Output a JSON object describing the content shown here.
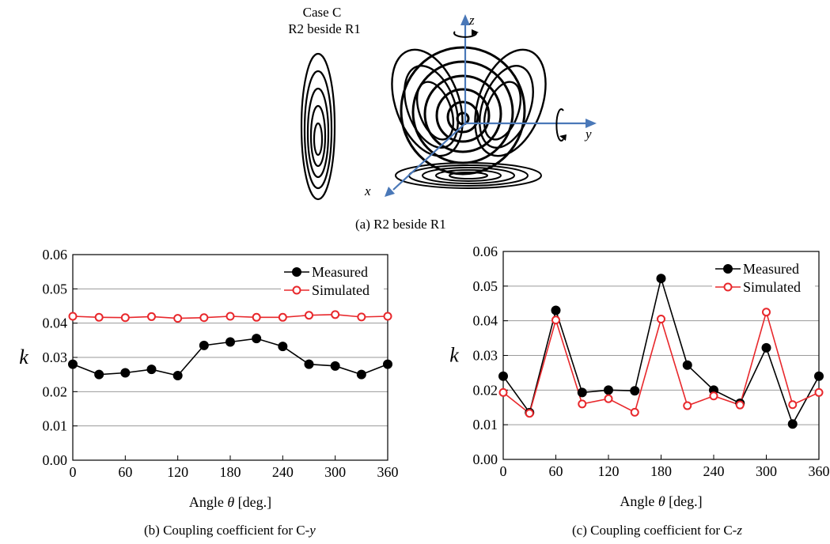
{
  "figure_a": {
    "case_title": "Case C",
    "case_subtitle": "R2 beside R1",
    "axis_x": "x",
    "axis_y": "y",
    "axis_z": "z",
    "caption": "(a)  R2 beside R1"
  },
  "captions": {
    "b_prefix": "(b) Coupling coefficient for C-",
    "b_axis": "y",
    "c_prefix": "(c) Coupling coefficient for C-",
    "c_axis": "z"
  },
  "chart_data": [
    {
      "type": "line",
      "ylabel": "k",
      "xlabel_prefix": "Angle ",
      "xlabel_symbol": "θ",
      "xlabel_suffix": "  [deg.]",
      "x": [
        0,
        30,
        60,
        90,
        120,
        150,
        180,
        210,
        240,
        270,
        300,
        330,
        360
      ],
      "xlim": [
        0,
        360
      ],
      "ylim": [
        0,
        0.06
      ],
      "xticks": [
        0,
        60,
        120,
        180,
        240,
        300,
        360
      ],
      "xtick_labels": [
        "0",
        "60",
        "120",
        "180",
        "240",
        "300",
        "360"
      ],
      "yticks": [
        0,
        0.01,
        0.02,
        0.03,
        0.04,
        0.05,
        0.06
      ],
      "ytick_labels": [
        "0.00",
        "0.01",
        "0.02",
        "0.03",
        "0.04",
        "0.05",
        "0.06"
      ],
      "grid": "horizontal",
      "legend": "top-right",
      "series": [
        {
          "name": "Measured",
          "color": "#000000",
          "marker": "filled-circle",
          "values": [
            0.028,
            0.025,
            0.0255,
            0.0265,
            0.0247,
            0.0335,
            0.0345,
            0.0355,
            0.0332,
            0.028,
            0.0275,
            0.025,
            0.028
          ]
        },
        {
          "name": "Simulated",
          "color": "#e8282c",
          "marker": "open-circle",
          "values": [
            0.042,
            0.0417,
            0.0416,
            0.0419,
            0.0414,
            0.0416,
            0.042,
            0.0417,
            0.0417,
            0.0423,
            0.0425,
            0.0418,
            0.042
          ]
        }
      ]
    },
    {
      "type": "line",
      "ylabel": "k",
      "xlabel_prefix": "Angle ",
      "xlabel_symbol": "θ",
      "xlabel_suffix": "  [deg.]",
      "x": [
        0,
        30,
        60,
        90,
        120,
        150,
        180,
        210,
        240,
        270,
        300,
        330,
        360
      ],
      "xlim": [
        0,
        360
      ],
      "ylim": [
        0,
        0.06
      ],
      "xticks": [
        0,
        60,
        120,
        180,
        240,
        300,
        360
      ],
      "xtick_labels": [
        "0",
        "60",
        "120",
        "180",
        "240",
        "300",
        "360"
      ],
      "yticks": [
        0,
        0.01,
        0.02,
        0.03,
        0.04,
        0.05,
        0.06
      ],
      "ytick_labels": [
        "0.00",
        "0.01",
        "0.02",
        "0.03",
        "0.04",
        "0.05",
        "0.06"
      ],
      "grid": "horizontal",
      "legend": "top-right",
      "series": [
        {
          "name": "Measured",
          "color": "#000000",
          "marker": "filled-circle",
          "values": [
            0.024,
            0.0135,
            0.043,
            0.0193,
            0.02,
            0.0198,
            0.0522,
            0.0272,
            0.02,
            0.0162,
            0.0322,
            0.0102,
            0.024
          ]
        },
        {
          "name": "Simulated",
          "color": "#e8282c",
          "marker": "open-circle",
          "values": [
            0.0193,
            0.0133,
            0.0402,
            0.016,
            0.0175,
            0.0136,
            0.0405,
            0.0155,
            0.0183,
            0.0157,
            0.0425,
            0.0158,
            0.0193
          ]
        }
      ]
    }
  ]
}
